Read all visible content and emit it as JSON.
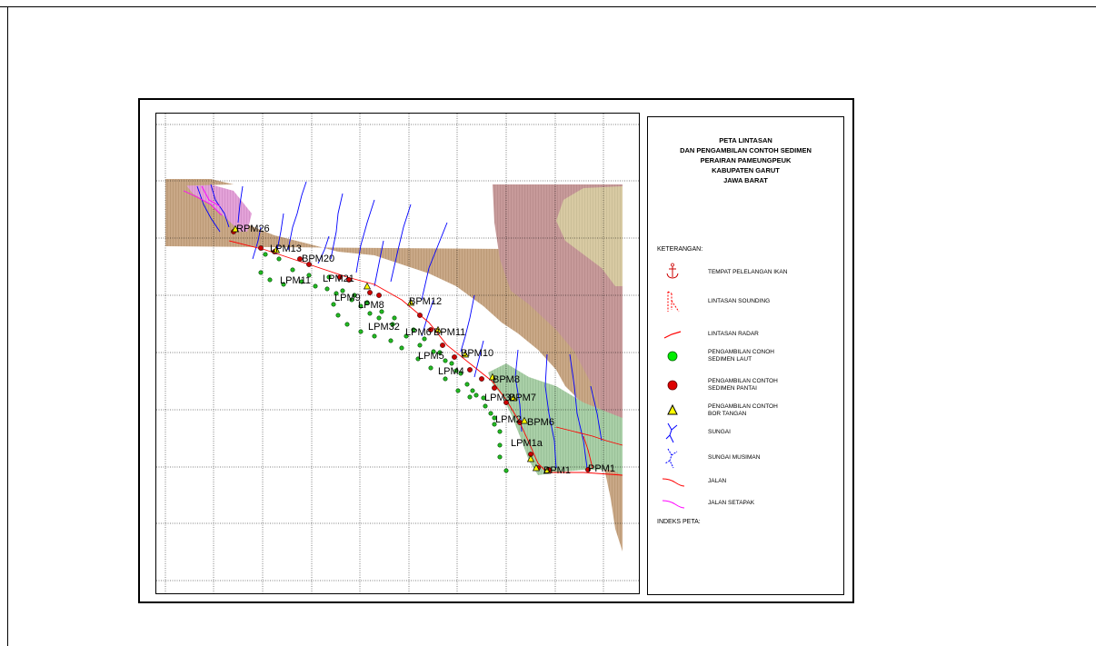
{
  "legend": {
    "title_lines": [
      "PETA LINTASAN",
      "DAN PENGAMBILAN CONTOH SEDIMEN",
      "PERAIRAN PAMEUNGPEUK",
      "KABUPATEN GARUT",
      "JAWA BARAT"
    ],
    "keterangan": "KETERANGAN:",
    "indeks": "INDEKS PETA:",
    "items": [
      {
        "label": "TEMPAT PELELANGAN IKAN",
        "icon": "anchor-icon"
      },
      {
        "label": "LINTASAN SOUNDING",
        "icon": "sounding-track-icon"
      },
      {
        "label": "LINTASAN RADAR",
        "icon": "radar-track-icon"
      },
      {
        "label": "PENGAMBILAN CONOH\nSEDIMEN LAUT",
        "icon": "green-circle-icon"
      },
      {
        "label": "PENGAMBILAN CONTOH\nSEDIMEN PANTAI",
        "icon": "red-circle-icon"
      },
      {
        "label": "PENGAMBILAN CONTOH\nBOR TANGAN",
        "icon": "yellow-triangle-icon"
      },
      {
        "label": "SUNGAI",
        "icon": "river-icon"
      },
      {
        "label": "SUNGAI MUSIMAN",
        "icon": "seasonal-river-icon"
      },
      {
        "label": "JALAN",
        "icon": "road-icon"
      },
      {
        "label": "JALAN SETAPAK",
        "icon": "footpath-icon"
      }
    ]
  },
  "colors": {
    "land_brown": "#c9a887",
    "land_mauve": "#c79a9a",
    "land_beige": "#d8caa3",
    "land_green": "#a9cfa7",
    "land_pink": "#d88fcf",
    "river": "#0000ff",
    "road": "#ff0000",
    "footpath": "#ff00ff",
    "sea_sample": "#22aa22",
    "beach_sample": "#cc0000",
    "bore_sample": "#ffff00"
  },
  "map_labels": [
    "RPM26",
    "LPM13",
    "BPM20",
    "LPM11",
    "LPM21",
    "LPM9",
    "LPM8",
    "BPM12",
    "LPM32",
    "LPM6",
    "BPM11",
    "LPM5",
    "BPM10",
    "LPM4",
    "BPM8",
    "LPM3",
    "BPM7",
    "LPM2",
    "BPM6",
    "LPM1a",
    "BPM1",
    "PPM1"
  ]
}
